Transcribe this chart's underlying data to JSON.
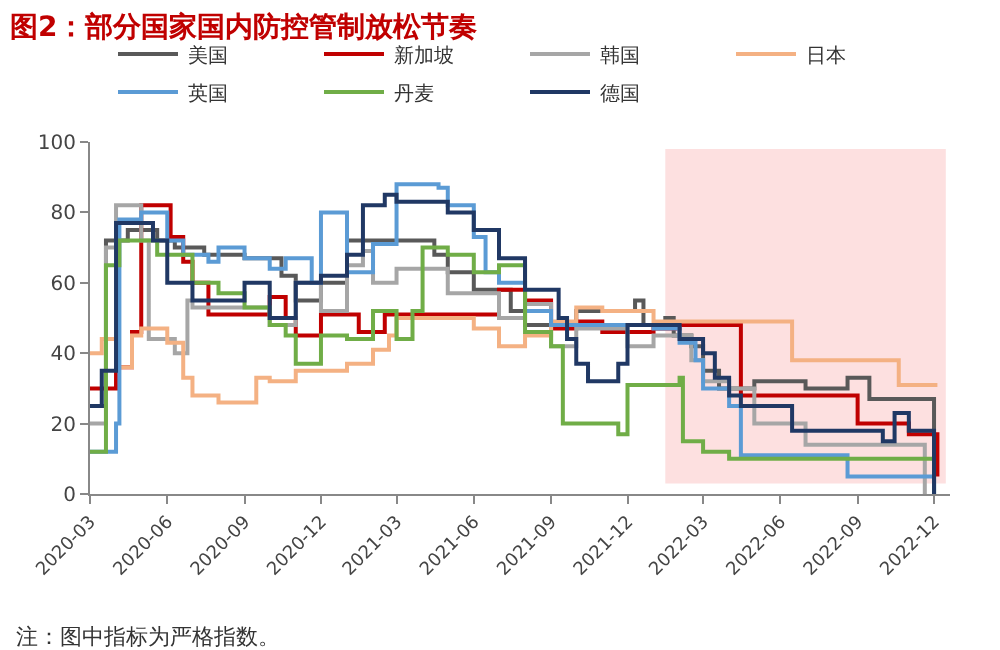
{
  "chart_data": {
    "type": "step",
    "title": "图2：部分国家国内防控管制放松节奏",
    "xlim": [
      "2020-03-01",
      "2022-12-20"
    ],
    "xticks": [
      {
        "value": "2020-03-01",
        "label": "2020-03"
      },
      {
        "value": "2020-06-01",
        "label": "2020-06"
      },
      {
        "value": "2020-09-01",
        "label": "2020-09"
      },
      {
        "value": "2020-12-01",
        "label": "2020-12"
      },
      {
        "value": "2021-03-01",
        "label": "2021-03"
      },
      {
        "value": "2021-06-01",
        "label": "2021-06"
      },
      {
        "value": "2021-09-01",
        "label": "2021-09"
      },
      {
        "value": "2021-12-01",
        "label": "2021-12"
      },
      {
        "value": "2022-03-01",
        "label": "2022-03"
      },
      {
        "value": "2022-06-01",
        "label": "2022-06"
      },
      {
        "value": "2022-09-01",
        "label": "2022-09"
      },
      {
        "value": "2022-12-01",
        "label": "2022-12"
      }
    ],
    "ylim": [
      0,
      100
    ],
    "yticks": [
      0,
      20,
      40,
      60,
      80,
      100
    ],
    "grid": false,
    "legend": "top",
    "bands": [
      {
        "axis": "x",
        "from": "2022-01-15",
        "to": "2022-12-15",
        "color": "#fde0e0"
      }
    ],
    "annotations": [
      "注：图中指标为严格指数。"
    ],
    "series": [
      {
        "name": "美国",
        "color": "#595959",
        "x": [
          "2020-03-01",
          "2020-03-20",
          "2020-04-15",
          "2020-05-20",
          "2020-06-10",
          "2020-07-15",
          "2020-09-01",
          "2020-10-15",
          "2020-11-01",
          "2020-12-01",
          "2021-01-01",
          "2021-03-01",
          "2021-04-15",
          "2021-05-01",
          "2021-06-01",
          "2021-07-15",
          "2021-08-01",
          "2021-10-01",
          "2021-12-10",
          "2021-12-20",
          "2022-01-15",
          "2022-01-25",
          "2022-02-15",
          "2022-03-01",
          "2022-03-20",
          "2022-05-01",
          "2022-07-01",
          "2022-08-20",
          "2022-09-15",
          "2022-11-20",
          "2022-12-01"
        ],
        "values": [
          25,
          72,
          75,
          72,
          70,
          68,
          67,
          62,
          55,
          60,
          72,
          72,
          68,
          63,
          58,
          52,
          48,
          52,
          55,
          48,
          50,
          45,
          42,
          35,
          30,
          32,
          30,
          33,
          27,
          27,
          0
        ]
      },
      {
        "name": "新加坡",
        "color": "#c00000",
        "x": [
          "2020-03-01",
          "2020-04-01",
          "2020-04-20",
          "2020-05-01",
          "2020-06-05",
          "2020-06-20",
          "2020-07-01",
          "2020-07-20",
          "2020-10-01",
          "2020-10-20",
          "2020-11-01",
          "2020-12-01",
          "2021-01-15",
          "2021-02-15",
          "2021-06-01",
          "2021-07-01",
          "2021-08-01",
          "2021-09-01",
          "2021-10-01",
          "2021-11-01",
          "2022-01-01",
          "2022-02-01",
          "2022-04-15",
          "2022-09-01",
          "2022-11-01",
          "2022-12-05"
        ],
        "values": [
          30,
          36,
          46,
          82,
          73,
          66,
          60,
          51,
          56,
          50,
          45,
          51,
          46,
          51,
          51,
          58,
          55,
          47,
          49,
          46,
          47,
          48,
          28,
          20,
          17,
          5
        ]
      },
      {
        "name": "韩国",
        "color": "#a6a6a6",
        "x": [
          "2020-03-01",
          "2020-03-20",
          "2020-04-01",
          "2020-05-01",
          "2020-05-10",
          "2020-06-10",
          "2020-06-25",
          "2020-07-01",
          "2020-10-01",
          "2020-11-01",
          "2020-12-01",
          "2021-01-01",
          "2021-01-20",
          "2021-02-01",
          "2021-03-01",
          "2021-05-01",
          "2021-07-01",
          "2021-08-01",
          "2021-09-01",
          "2021-10-01",
          "2021-12-01",
          "2022-01-01",
          "2022-02-15",
          "2022-03-01",
          "2022-04-01",
          "2022-05-01",
          "2022-07-01",
          "2022-11-20"
        ],
        "values": [
          20,
          70,
          82,
          72,
          44,
          40,
          55,
          53,
          48,
          60,
          52,
          65,
          69,
          60,
          64,
          57,
          50,
          54,
          42,
          47,
          42,
          45,
          38,
          32,
          30,
          20,
          14,
          0
        ]
      },
      {
        "name": "日本",
        "color": "#f4b183",
        "x": [
          "2020-03-01",
          "2020-03-15",
          "2020-04-01",
          "2020-04-20",
          "2020-05-01",
          "2020-06-01",
          "2020-06-20",
          "2020-07-01",
          "2020-08-01",
          "2020-09-15",
          "2020-10-01",
          "2020-11-01",
          "2021-01-01",
          "2021-02-01",
          "2021-02-20",
          "2021-03-01",
          "2021-06-01",
          "2021-07-01",
          "2021-08-01",
          "2021-09-01",
          "2021-10-01",
          "2021-11-01",
          "2022-01-01",
          "2022-06-15",
          "2022-10-20",
          "2022-12-05"
        ],
        "values": [
          40,
          44,
          36,
          45,
          47,
          43,
          33,
          28,
          26,
          33,
          32,
          35,
          37,
          41,
          45,
          50,
          47,
          42,
          45,
          49,
          53,
          52,
          49,
          38,
          31,
          31
        ]
      },
      {
        "name": "英国",
        "color": "#5b9bd5",
        "x": [
          "2020-03-01",
          "2020-04-01",
          "2020-04-05",
          "2020-05-01",
          "2020-06-01",
          "2020-06-20",
          "2020-07-20",
          "2020-08-01",
          "2020-09-01",
          "2020-10-01",
          "2020-10-20",
          "2020-11-20",
          "2020-12-01",
          "2021-01-01",
          "2021-02-01",
          "2021-03-01",
          "2021-04-20",
          "2021-05-01",
          "2021-06-01",
          "2021-06-15",
          "2021-07-01",
          "2021-08-01",
          "2021-09-01",
          "2022-01-01",
          "2022-02-01",
          "2022-02-20",
          "2022-03-01",
          "2022-04-01",
          "2022-04-15",
          "2022-08-20",
          "2022-11-20",
          "2022-12-01"
        ],
        "values": [
          12,
          20,
          78,
          80,
          72,
          68,
          66,
          70,
          67,
          64,
          67,
          60,
          80,
          63,
          71,
          88,
          87,
          82,
          73,
          63,
          60,
          52,
          48,
          47,
          43,
          38,
          30,
          25,
          11,
          5,
          5,
          0
        ]
      },
      {
        "name": "丹麦",
        "color": "#70ad47",
        "x": [
          "2020-03-01",
          "2020-03-20",
          "2020-04-05",
          "2020-05-20",
          "2020-07-01",
          "2020-08-01",
          "2020-09-01",
          "2020-10-01",
          "2020-10-20",
          "2020-11-01",
          "2020-12-01",
          "2021-01-01",
          "2021-02-01",
          "2021-03-01",
          "2021-03-20",
          "2021-04-01",
          "2021-05-01",
          "2021-06-01",
          "2021-07-01",
          "2021-08-01",
          "2021-09-01",
          "2021-09-15",
          "2021-11-20",
          "2021-12-01",
          "2022-02-01",
          "2022-02-05",
          "2022-03-01",
          "2022-04-01",
          "2022-11-20",
          "2022-12-01"
        ],
        "values": [
          12,
          65,
          72,
          68,
          60,
          57,
          53,
          48,
          45,
          37,
          45,
          44,
          52,
          44,
          52,
          70,
          68,
          63,
          65,
          46,
          42,
          20,
          17,
          31,
          33,
          15,
          12,
          10,
          10,
          0
        ]
      },
      {
        "name": "德国",
        "color": "#203864",
        "x": [
          "2020-03-01",
          "2020-03-15",
          "2020-04-01",
          "2020-05-15",
          "2020-06-01",
          "2020-07-01",
          "2020-09-01",
          "2020-10-01",
          "2020-11-01",
          "2020-12-01",
          "2021-01-01",
          "2021-01-20",
          "2021-02-15",
          "2021-03-01",
          "2021-05-01",
          "2021-06-01",
          "2021-07-01",
          "2021-08-01",
          "2021-09-10",
          "2021-09-20",
          "2021-10-01",
          "2021-10-15",
          "2021-11-20",
          "2021-12-01",
          "2022-02-01",
          "2022-03-01",
          "2022-03-15",
          "2022-04-01",
          "2022-04-15",
          "2022-06-15",
          "2022-10-01",
          "2022-10-15",
          "2022-11-01",
          "2022-12-01"
        ],
        "values": [
          25,
          35,
          77,
          72,
          60,
          55,
          60,
          50,
          60,
          62,
          68,
          82,
          85,
          83,
          80,
          75,
          67,
          58,
          50,
          44,
          37,
          32,
          37,
          48,
          44,
          40,
          33,
          28,
          25,
          18,
          15,
          23,
          18,
          0
        ]
      }
    ]
  }
}
